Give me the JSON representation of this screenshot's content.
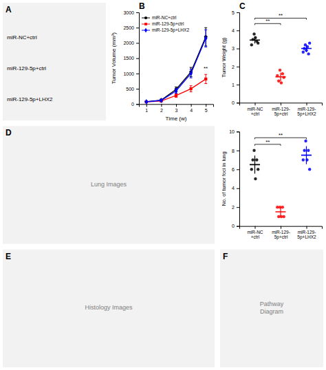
{
  "chart_data": [
    {
      "type": "image",
      "title": "A",
      "annotations": [
        "miR-NC+ctrl",
        "miR-129-5p+ctrl",
        "miR-129-5p+LHX2"
      ]
    },
    {
      "type": "line",
      "title": "B",
      "xlabel": "Time (w)",
      "ylabel": "Tumor Volume (mm³)",
      "x": [
        1,
        2,
        3,
        4,
        5
      ],
      "xlim": [
        0.5,
        5.5
      ],
      "xticks": [
        1,
        2,
        3,
        4,
        5
      ],
      "ylim": [
        0,
        3000
      ],
      "yticks": [
        0,
        500,
        1000,
        1500,
        2000,
        2500,
        3000
      ],
      "legend": "upper left",
      "series": [
        {
          "name": "miR-NC+ctrl",
          "color": "#000000",
          "marker": "circle",
          "values": [
            80,
            130,
            480,
            1050,
            2200
          ],
          "errors": [
            20,
            30,
            80,
            150,
            300
          ]
        },
        {
          "name": "miR-129-5p+ctrl",
          "color": "#ff0000",
          "marker": "square",
          "values": [
            70,
            100,
            280,
            500,
            820
          ],
          "errors": [
            15,
            25,
            60,
            100,
            150
          ]
        },
        {
          "name": "miR-129-5p+LHX2",
          "color": "#0000ff",
          "marker": "diamond",
          "values": [
            75,
            120,
            430,
            1000,
            2150
          ],
          "errors": [
            18,
            28,
            75,
            140,
            280
          ]
        }
      ],
      "annotations": [
        {
          "text": "**",
          "x": 4.85,
          "y": 1100
        }
      ]
    },
    {
      "type": "scatter",
      "title": "C",
      "ylabel": "Tumor Weight (g)",
      "categories": [
        "miR-NC\n+ctrl",
        "miR-129-\n5p+ctrl",
        "miR-129-\n5p+LHX2"
      ],
      "colors": [
        "#000000",
        "#ff0000",
        "#0000ff"
      ],
      "values": [
        [
          3.2,
          3.5,
          3.8,
          3.6,
          3.4,
          3.3
        ],
        [
          1.5,
          1.2,
          1.8,
          1.1,
          1.6,
          1.4
        ],
        [
          2.8,
          3.0,
          3.2,
          2.9,
          3.1,
          2.7,
          3.3
        ]
      ],
      "means": [
        3.47,
        1.43,
        3.0
      ],
      "sd": [
        0.1972,
        0.2357,
        0.2
      ],
      "ylim": [
        0,
        5
      ],
      "yticks": [
        0,
        1,
        2,
        3,
        4,
        5
      ],
      "annotations": [
        {
          "text": "**",
          "between": [
            "miR-NC\n+ctrl",
            "miR-129-\n5p+ctrl"
          ],
          "y": 4.3,
          "dy": 0.08
        },
        {
          "text": "**",
          "between": [
            "miR-NC\n+ctrl",
            "miR-129-\n5p+LHX2"
          ],
          "y": 4.6,
          "dy": 0.08
        }
      ]
    },
    {
      "type": "image",
      "title": "D",
      "annotations": [
        "Lung Images"
      ]
    },
    {
      "type": "scatter",
      "ylabel": "No. of tumor foci in lung",
      "categories": [
        "miR-NC\n+ctrl",
        "miR-129-\n5p+ctrl",
        "miR-129-\n5p+LHX2"
      ],
      "colors": [
        "#000000",
        "#ff0000",
        "#0000ff"
      ],
      "values": [
        [
          6,
          7,
          8,
          5,
          7,
          6
        ],
        [
          2,
          1,
          2,
          1,
          2,
          1
        ],
        [
          7,
          8,
          9,
          7,
          8,
          6
        ]
      ],
      "means": [
        6.5,
        1.5,
        7.5
      ],
      "sd": [
        0.9574,
        0.5,
        0.9574
      ],
      "ylim": [
        0,
        10
      ],
      "yticks": [
        0,
        2,
        4,
        6,
        8,
        10
      ],
      "annotations": [
        {
          "text": "**",
          "between": [
            "miR-NC\n+ctrl",
            "miR-129-\n5p+ctrl"
          ],
          "y": 8.5,
          "dy": 0.15
        },
        {
          "text": "**",
          "between": [
            "miR-NC\n+ctrl",
            "miR-129-\n5p+LHX2"
          ],
          "y": 9.2,
          "dy": 0.15
        }
      ]
    },
    {
      "type": "image",
      "title": "E",
      "annotations": [
        "Histology Images"
      ]
    },
    {
      "type": "image",
      "title": "F",
      "annotations": [
        "Pathway\nDiagram"
      ]
    }
  ]
}
